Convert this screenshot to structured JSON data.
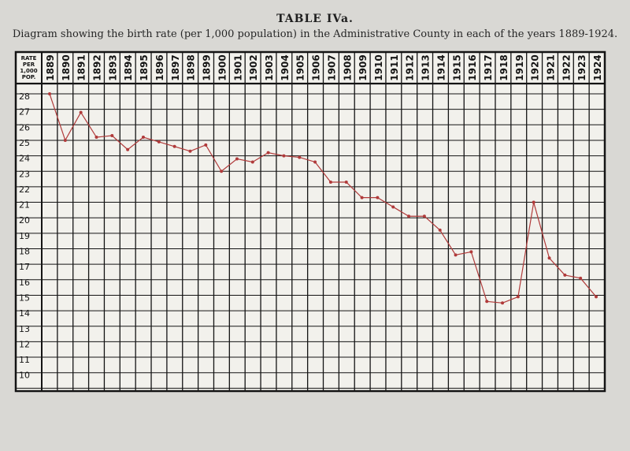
{
  "title": "TABLE IVa.",
  "subtitle": "Diagram showing the birth rate (per 1,000 population) in the Administrative County in each of the years 1889-1924.",
  "header_label": [
    "RATE",
    "PER",
    "1,000",
    "POP."
  ],
  "colors": {
    "line": "#b03a3a",
    "ink": "#141414",
    "paper": "#f2f1ec"
  },
  "chart_data": {
    "type": "line",
    "x": [
      1889,
      1890,
      1891,
      1892,
      1893,
      1894,
      1895,
      1896,
      1897,
      1898,
      1899,
      1900,
      1901,
      1902,
      1903,
      1904,
      1905,
      1906,
      1907,
      1908,
      1909,
      1910,
      1911,
      1912,
      1913,
      1914,
      1915,
      1916,
      1917,
      1918,
      1919,
      1920,
      1921,
      1922,
      1923,
      1924
    ],
    "series": [
      {
        "values": [
          28.0,
          25.0,
          26.8,
          25.2,
          25.3,
          24.4,
          25.2,
          24.9,
          24.6,
          24.3,
          24.7,
          23.0,
          23.8,
          23.6,
          24.2,
          24.0,
          23.9,
          23.6,
          22.3,
          22.3,
          21.3,
          21.3,
          20.7,
          20.1,
          20.1,
          19.2,
          17.6,
          17.8,
          14.6,
          14.5,
          14.9,
          21.0,
          17.4,
          16.3,
          16.1,
          14.9
        ]
      }
    ],
    "y_ticks": [
      28,
      27,
      26,
      25,
      24,
      23,
      22,
      21,
      20,
      19,
      18,
      17,
      16,
      15,
      14,
      13,
      12,
      11,
      10
    ],
    "ylim": [
      9,
      28.5
    ],
    "grid": true,
    "legend": "none"
  }
}
